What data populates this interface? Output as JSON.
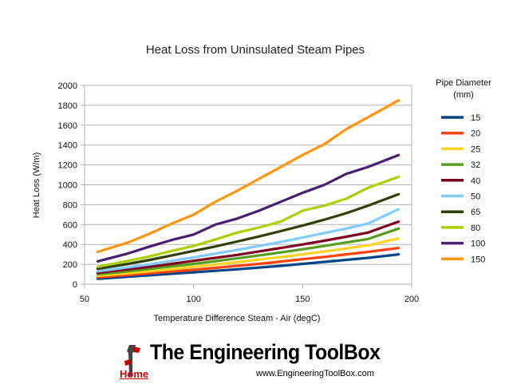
{
  "chart_data": {
    "type": "line",
    "title": "Heat Loss from Uninsulated Steam Pipes",
    "xlabel": "Temperature Difference Steam - Air (degC)",
    "ylabel": "Heat Loss (W/m)",
    "xlim": [
      50,
      200
    ],
    "ylim": [
      0,
      2000
    ],
    "xticks": [
      50,
      100,
      150,
      200
    ],
    "yticks": [
      0,
      200,
      400,
      600,
      800,
      1000,
      1200,
      1400,
      1600,
      1800,
      2000
    ],
    "grid": "horizontal",
    "legend": {
      "title": "Pipe Diameter (mm)",
      "position": "right"
    },
    "x": [
      56,
      70,
      80,
      90,
      100,
      110,
      120,
      130,
      140,
      150,
      160,
      170,
      180,
      194
    ],
    "series": [
      {
        "name": "15",
        "color": "#004586",
        "values": [
          55,
          75,
          90,
          105,
          120,
          135,
          150,
          168,
          185,
          205,
          225,
          245,
          265,
          300
        ]
      },
      {
        "name": "20",
        "color": "#ff420e",
        "values": [
          70,
          92,
          110,
          128,
          145,
          165,
          185,
          205,
          228,
          252,
          275,
          300,
          325,
          365
        ]
      },
      {
        "name": "25",
        "color": "#ffd320",
        "values": [
          85,
          110,
          130,
          152,
          175,
          198,
          222,
          248,
          273,
          300,
          330,
          360,
          390,
          460
        ]
      },
      {
        "name": "32",
        "color": "#579d1c",
        "values": [
          100,
          130,
          155,
          180,
          205,
          232,
          260,
          290,
          320,
          352,
          385,
          420,
          455,
          560
        ]
      },
      {
        "name": "40",
        "color": "#7e0021",
        "values": [
          115,
          150,
          175,
          205,
          235,
          265,
          295,
          330,
          365,
          400,
          438,
          478,
          520,
          630
        ]
      },
      {
        "name": "50",
        "color": "#83caff",
        "values": [
          130,
          170,
          200,
          235,
          270,
          308,
          345,
          385,
          425,
          470,
          515,
          560,
          610,
          755
        ]
      },
      {
        "name": "65",
        "color": "#314004",
        "values": [
          155,
          205,
          245,
          290,
          335,
          380,
          430,
          480,
          535,
          590,
          650,
          715,
          790,
          905
        ]
      },
      {
        "name": "80",
        "color": "#aecf00",
        "values": [
          175,
          235,
          280,
          335,
          385,
          450,
          520,
          570,
          630,
          740,
          790,
          860,
          970,
          1080
        ]
      },
      {
        "name": "100",
        "color": "#4b1f6f",
        "values": [
          230,
          310,
          380,
          445,
          500,
          600,
          660,
          740,
          830,
          920,
          1000,
          1110,
          1180,
          1300
        ]
      },
      {
        "name": "150",
        "color": "#ff950e",
        "values": [
          325,
          420,
          510,
          610,
          700,
          830,
          940,
          1060,
          1180,
          1300,
          1410,
          1560,
          1680,
          1850
        ]
      }
    ]
  },
  "branding": {
    "name": "The Engineering ToolBox",
    "home_label": "Home",
    "url": "www.EngineeringToolBox.com"
  }
}
